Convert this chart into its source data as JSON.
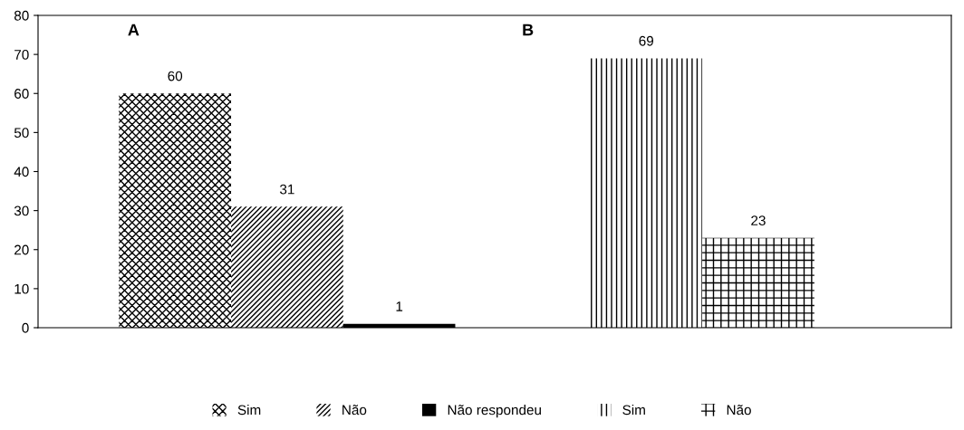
{
  "chart_data": {
    "type": "bar",
    "categories": [
      null,
      null
    ],
    "series": [
      {
        "name": "Sim",
        "color": "#000000",
        "values": [
          60,
          null
        ]
      },
      {
        "name": "Não",
        "color": "#000000",
        "values": [
          31,
          null
        ]
      },
      {
        "name": "Não respondeu",
        "color": "#000000",
        "values": [
          1,
          null
        ]
      },
      {
        "name": "Sim",
        "color": "#000000",
        "values": [
          null,
          69
        ]
      },
      {
        "name": "Não",
        "color": "#000000",
        "values": [
          null,
          23
        ]
      }
    ],
    "annotations": [
      "A",
      "B"
    ],
    "ylim": [
      0,
      80
    ],
    "yticks": [
      0,
      10,
      20,
      30,
      40,
      50,
      60,
      70,
      80
    ],
    "data_labels": true,
    "grid": false,
    "legend": "bottom"
  }
}
